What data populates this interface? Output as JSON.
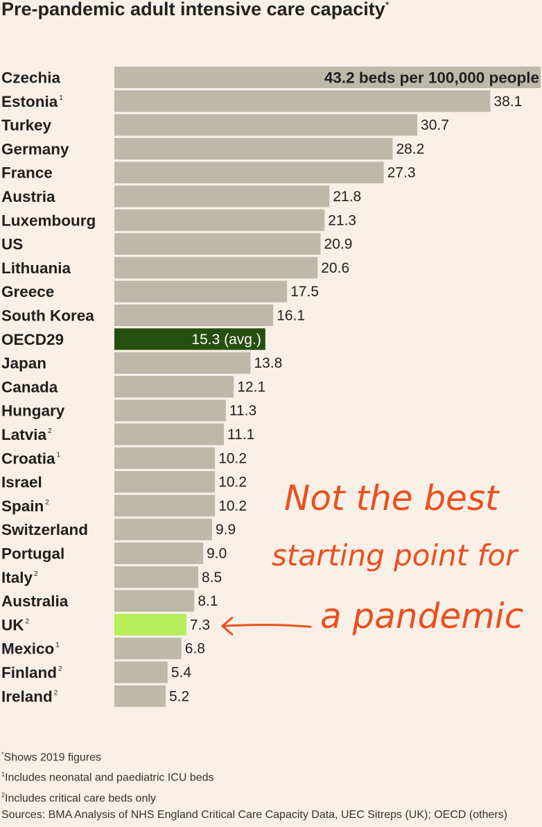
{
  "title": "Pre-pandemic adult intensive care capacity",
  "title_marker": "*",
  "colors": {
    "background": "#f8efe6",
    "default_bar": "#bcb9a9",
    "average_bar": "#254f0e",
    "highlight_bar": "#b7ee5c",
    "annotation": "#e8501e"
  },
  "chart_data": {
    "type": "bar",
    "orientation": "horizontal",
    "unit_label": "beds per 100,000 people",
    "xlim": [
      0,
      43.2
    ],
    "categories": [
      "Czechia",
      "Estonia",
      "Turkey",
      "Germany",
      "France",
      "Austria",
      "Luxembourg",
      "US",
      "Lithuania",
      "Greece",
      "South Korea",
      "OECD29",
      "Japan",
      "Canada",
      "Hungary",
      "Latvia",
      "Croatia",
      "Israel",
      "Spain",
      "Switzerland",
      "Portugal",
      "Italy",
      "Australia",
      "UK",
      "Mexico",
      "Finland",
      "Ireland"
    ],
    "category_markers": [
      "",
      "1",
      "",
      "",
      "",
      "",
      "",
      "",
      "",
      "",
      "",
      "",
      "",
      "",
      "",
      "2",
      "1",
      "",
      "2",
      "",
      "",
      "2",
      "",
      "2",
      "1",
      "2",
      "2"
    ],
    "values": [
      43.2,
      38.1,
      30.7,
      28.2,
      27.3,
      21.8,
      21.3,
      20.9,
      20.6,
      17.5,
      16.1,
      15.3,
      13.8,
      12.1,
      11.3,
      11.1,
      10.2,
      10.2,
      10.2,
      9.9,
      9.0,
      8.5,
      8.1,
      7.3,
      6.8,
      5.4,
      5.2
    ],
    "value_labels": [
      "43.2 beds per 100,000 people",
      "38.1",
      "30.7",
      "28.2",
      "27.3",
      "21.8",
      "21.3",
      "20.9",
      "20.6",
      "17.5",
      "16.1",
      "15.3 (avg.)",
      "13.8",
      "12.1",
      "11.3",
      "11.1",
      "10.2",
      "10.2",
      "10.2",
      "9.9",
      "9.0",
      "8.5",
      "8.1",
      "7.3",
      "6.8",
      "5.4",
      "5.2"
    ],
    "average_category": "OECD29",
    "highlight_category": "UK",
    "annotation": {
      "lines": [
        "Not the best",
        "starting point for",
        "a pandemic"
      ],
      "points_to": "UK"
    }
  },
  "footnotes": [
    {
      "marker": "*",
      "text": "Shows 2019 figures"
    },
    {
      "marker": "1",
      "text": "Includes neonatal and paediatric ICU beds"
    },
    {
      "marker": "2",
      "text": "Includes critical care beds only"
    },
    {
      "marker": "",
      "text": "Sources: BMA Analysis of NHS England Critical Care Capacity Data, UEC Sitreps (UK); OECD (others)"
    }
  ]
}
